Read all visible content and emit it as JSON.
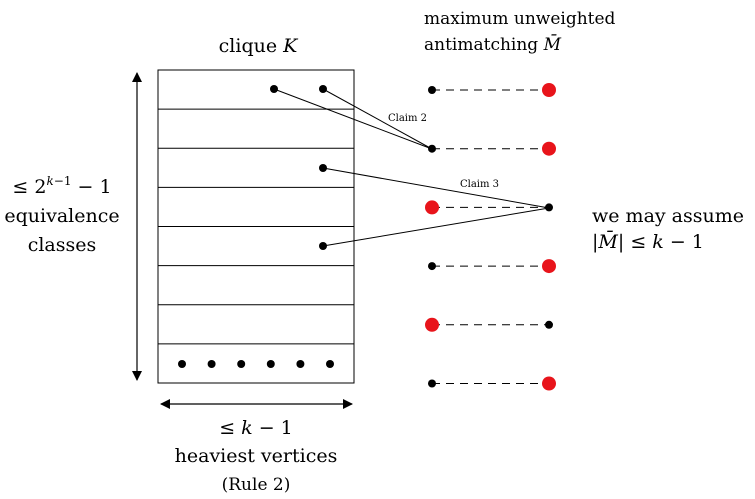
{
  "labels": {
    "clique": "clique K",
    "antimatching_line1": "maximum unweighted",
    "antimatching_line2": "antimatching M̄",
    "classes_line1": "≤ 2^{k−1} − 1",
    "classes_line2": "equivalence",
    "classes_line3": "classes",
    "bottom_line1": "≤ k − 1",
    "bottom_line2": "heaviest vertices",
    "bottom_line3": "(Rule 2)",
    "assume_line1": "we may assume",
    "assume_line2": "|M̄| ≤ k − 1",
    "claim2": "Claim 2",
    "claim3": "Claim 3"
  },
  "colors": {
    "red": "#e8141b",
    "black": "#000000"
  },
  "clique_rows": 8,
  "bottom_row_dots": 6,
  "antimatching_pairs": [
    {
      "left": "black",
      "right": "red"
    },
    {
      "left": "black",
      "right": "red"
    },
    {
      "left": "red",
      "right": "black"
    },
    {
      "left": "black",
      "right": "red"
    },
    {
      "left": "red",
      "right": "black"
    },
    {
      "left": "black",
      "right": "red"
    }
  ]
}
